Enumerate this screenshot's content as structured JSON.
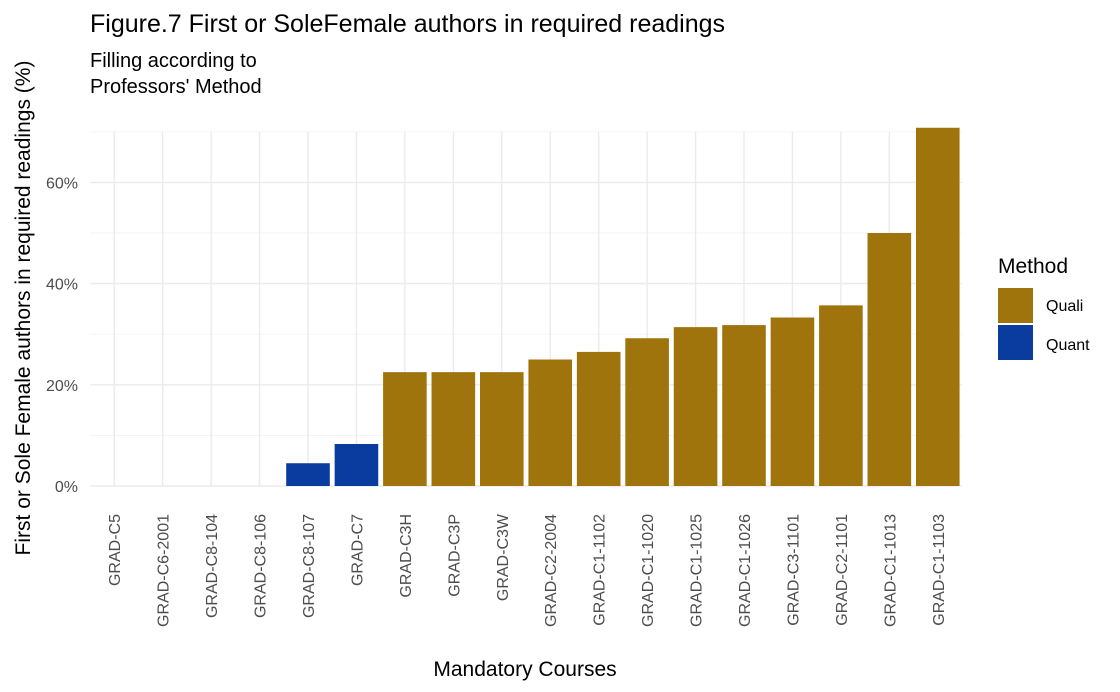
{
  "chart_data": {
    "type": "bar",
    "title": "Figure.7 First or SoleFemale authors in required readings",
    "subtitle_lines": [
      "Filling according to",
      "Professors' Method"
    ],
    "xlabel": "Mandatory Courses",
    "ylabel": "First or Sole Female authors in required readings (%)",
    "ylim": [
      0,
      70
    ],
    "yticks": [
      0,
      20,
      40,
      60
    ],
    "ytick_labels": [
      "0%",
      "20%",
      "40%",
      "60%"
    ],
    "grid": true,
    "legend": {
      "title": "Method",
      "placement": "right",
      "entries": [
        {
          "label": "Quali",
          "color": "#A0740C"
        },
        {
          "label": "Quant",
          "color": "#0A3B9E"
        }
      ]
    },
    "categories": [
      "GRAD-C5",
      "GRAD-C6-2001",
      "GRAD-C8-104",
      "GRAD-C8-106",
      "GRAD-C8-107",
      "GRAD-C7",
      "GRAD-C3H",
      "GRAD-C3P",
      "GRAD-C3W",
      "GRAD-C2-2004",
      "GRAD-C1-1102",
      "GRAD-C1-1020",
      "GRAD-C1-1025",
      "GRAD-C1-1026",
      "GRAD-C3-1101",
      "GRAD-C2-1101",
      "GRAD-C1-1013",
      "GRAD-C1-1103"
    ],
    "values": [
      0,
      0,
      0,
      0,
      4.5,
      8.3,
      22.5,
      22.5,
      22.5,
      25.0,
      26.5,
      29.2,
      31.4,
      31.8,
      33.3,
      35.7,
      50.0,
      70.8
    ],
    "method": [
      "Quant",
      "Quant",
      "Quant",
      "Quant",
      "Quant",
      "Quant",
      "Quali",
      "Quali",
      "Quali",
      "Quali",
      "Quali",
      "Quali",
      "Quali",
      "Quali",
      "Quali",
      "Quali",
      "Quali",
      "Quali"
    ]
  }
}
